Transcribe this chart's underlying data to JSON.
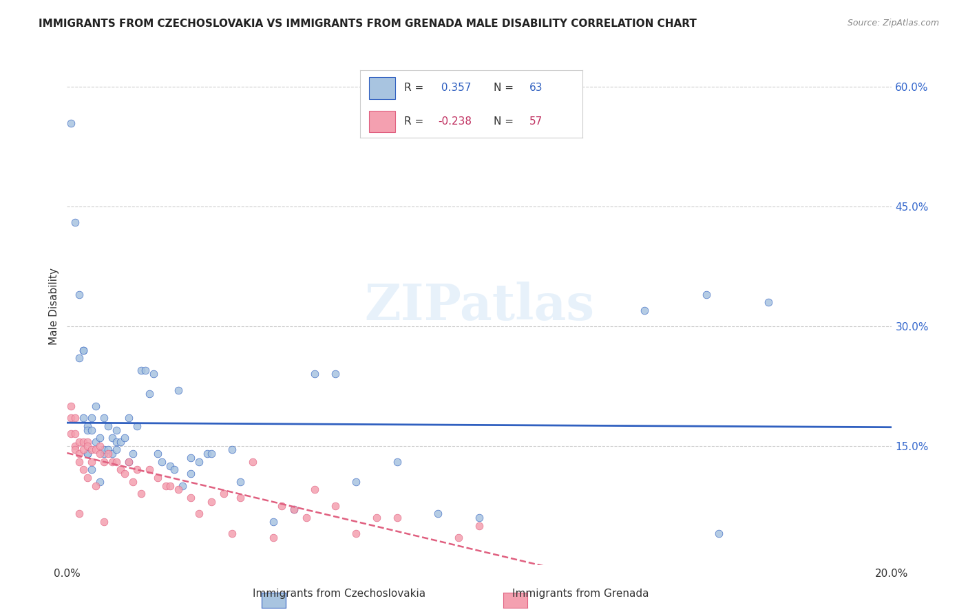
{
  "title": "IMMIGRANTS FROM CZECHOSLOVAKIA VS IMMIGRANTS FROM GRENADA MALE DISABILITY CORRELATION CHART",
  "source": "Source: ZipAtlas.com",
  "xlabel_bottom": "",
  "ylabel": "Male Disability",
  "xlim": [
    0.0,
    0.2
  ],
  "ylim": [
    0.0,
    0.65
  ],
  "x_ticks": [
    0.0,
    0.04,
    0.08,
    0.12,
    0.16,
    0.2
  ],
  "x_tick_labels": [
    "0.0%",
    "",
    "",
    "",
    "",
    "20.0%"
  ],
  "y_ticks_right": [
    0.15,
    0.3,
    0.45,
    0.6
  ],
  "y_tick_labels_right": [
    "15.0%",
    "30.0%",
    "45.0%",
    "60.0%"
  ],
  "color_czech": "#a8c4e0",
  "color_grenada": "#f4a0b0",
  "line_color_czech": "#3060c0",
  "line_color_grenada": "#e06080",
  "R_czech": 0.357,
  "N_czech": 63,
  "R_grenada": -0.238,
  "N_grenada": 57,
  "watermark": "ZIPatlas",
  "czech_x": [
    0.001,
    0.002,
    0.003,
    0.003,
    0.004,
    0.004,
    0.004,
    0.005,
    0.005,
    0.005,
    0.005,
    0.006,
    0.006,
    0.006,
    0.007,
    0.007,
    0.008,
    0.008,
    0.009,
    0.009,
    0.009,
    0.01,
    0.01,
    0.011,
    0.011,
    0.012,
    0.012,
    0.012,
    0.013,
    0.014,
    0.015,
    0.015,
    0.016,
    0.017,
    0.018,
    0.019,
    0.02,
    0.021,
    0.022,
    0.023,
    0.025,
    0.026,
    0.027,
    0.028,
    0.03,
    0.03,
    0.032,
    0.034,
    0.035,
    0.04,
    0.042,
    0.05,
    0.055,
    0.06,
    0.065,
    0.07,
    0.08,
    0.09,
    0.1,
    0.14,
    0.155,
    0.158,
    0.17
  ],
  "czech_y": [
    0.555,
    0.43,
    0.34,
    0.26,
    0.27,
    0.27,
    0.185,
    0.14,
    0.14,
    0.175,
    0.17,
    0.17,
    0.185,
    0.12,
    0.155,
    0.2,
    0.16,
    0.105,
    0.14,
    0.185,
    0.145,
    0.145,
    0.175,
    0.14,
    0.16,
    0.155,
    0.17,
    0.145,
    0.155,
    0.16,
    0.185,
    0.13,
    0.14,
    0.175,
    0.245,
    0.245,
    0.215,
    0.24,
    0.14,
    0.13,
    0.125,
    0.12,
    0.22,
    0.1,
    0.135,
    0.115,
    0.13,
    0.14,
    0.14,
    0.145,
    0.105,
    0.055,
    0.07,
    0.24,
    0.24,
    0.105,
    0.13,
    0.065,
    0.06,
    0.32,
    0.34,
    0.04,
    0.33
  ],
  "grenada_x": [
    0.001,
    0.001,
    0.001,
    0.002,
    0.002,
    0.002,
    0.002,
    0.003,
    0.003,
    0.003,
    0.003,
    0.004,
    0.004,
    0.004,
    0.005,
    0.005,
    0.005,
    0.006,
    0.006,
    0.007,
    0.007,
    0.008,
    0.008,
    0.009,
    0.009,
    0.01,
    0.011,
    0.012,
    0.013,
    0.014,
    0.015,
    0.016,
    0.017,
    0.018,
    0.02,
    0.022,
    0.024,
    0.025,
    0.027,
    0.03,
    0.032,
    0.035,
    0.038,
    0.04,
    0.042,
    0.045,
    0.05,
    0.052,
    0.055,
    0.058,
    0.06,
    0.065,
    0.07,
    0.075,
    0.08,
    0.095,
    0.1
  ],
  "grenada_y": [
    0.2,
    0.185,
    0.165,
    0.185,
    0.165,
    0.15,
    0.145,
    0.155,
    0.14,
    0.13,
    0.065,
    0.155,
    0.145,
    0.12,
    0.155,
    0.15,
    0.11,
    0.145,
    0.13,
    0.145,
    0.1,
    0.15,
    0.14,
    0.13,
    0.055,
    0.14,
    0.13,
    0.13,
    0.12,
    0.115,
    0.13,
    0.105,
    0.12,
    0.09,
    0.12,
    0.11,
    0.1,
    0.1,
    0.095,
    0.085,
    0.065,
    0.08,
    0.09,
    0.04,
    0.085,
    0.13,
    0.035,
    0.075,
    0.07,
    0.06,
    0.095,
    0.075,
    0.04,
    0.06,
    0.06,
    0.035,
    0.05
  ]
}
